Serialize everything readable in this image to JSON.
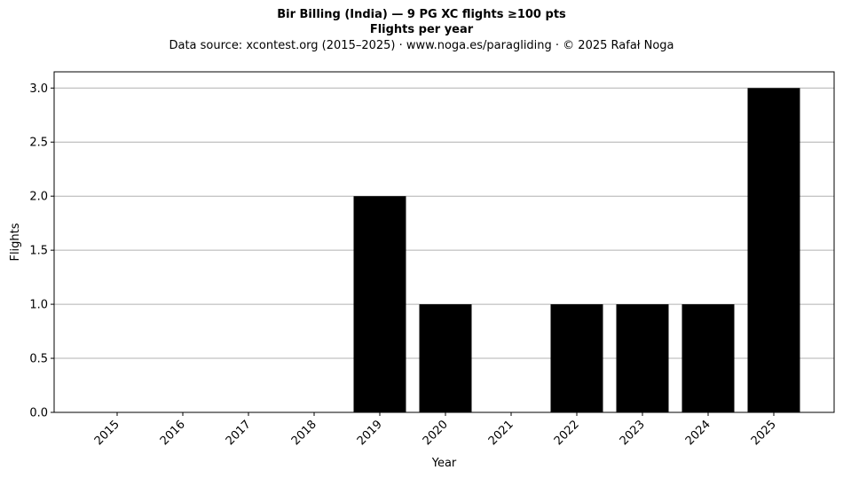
{
  "chart_data": {
    "type": "bar",
    "title": "Bir Billing (India)  —  9 PG XC flights ≥100 pts",
    "subtitle": "Flights per year",
    "caption": "Data source: xcontest.org (2015–2025)  ·  www.noga.es/paragliding  ·  © 2025 Rafał Noga",
    "xlabel": "Year",
    "ylabel": "Flights",
    "categories": [
      "2015",
      "2016",
      "2017",
      "2018",
      "2019",
      "2020",
      "2021",
      "2022",
      "2023",
      "2024",
      "2025"
    ],
    "values": [
      0,
      0,
      0,
      0,
      2,
      1,
      0,
      1,
      1,
      1,
      3
    ],
    "ylim": [
      0,
      3.15
    ],
    "yticks": [
      "0.0",
      "0.5",
      "1.0",
      "1.5",
      "2.0",
      "2.5",
      "3.0"
    ],
    "grid": "y",
    "bar_color": "#000000",
    "grid_color": "#b0b0b0"
  }
}
